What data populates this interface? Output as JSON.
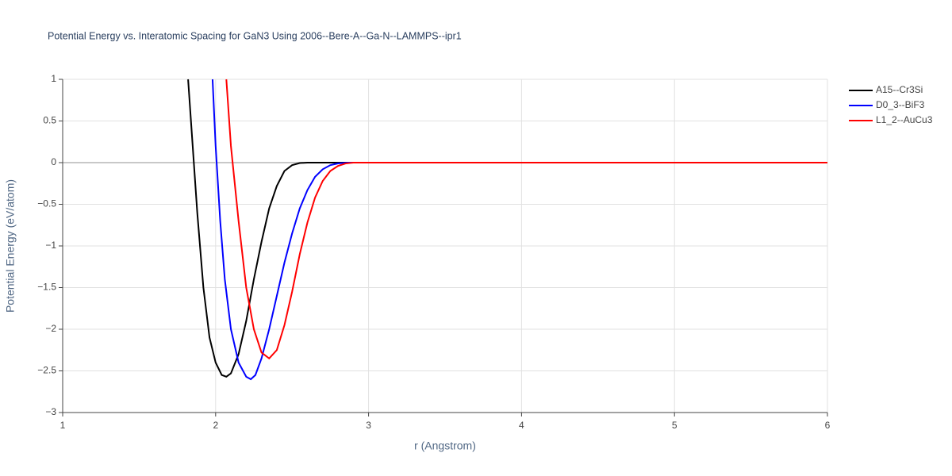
{
  "chart_data": {
    "type": "line",
    "title": "Potential Energy vs. Interatomic Spacing for GaN3 Using 2006--Bere-A--Ga-N--LAMMPS--ipr1",
    "x_label": "r (Angstrom)",
    "y_label": "Potential Energy (eV/atom)",
    "xlim": [
      1,
      6
    ],
    "ylim": [
      -3,
      1
    ],
    "xticks": [
      1,
      2,
      3,
      4,
      5,
      6
    ],
    "yticks": [
      {
        "value": -3,
        "label": "−3"
      },
      {
        "value": -2.5,
        "label": "−2.5"
      },
      {
        "value": -2,
        "label": "−2"
      },
      {
        "value": -1.5,
        "label": "−1.5"
      },
      {
        "value": -1,
        "label": "−1"
      },
      {
        "value": -0.5,
        "label": "−0.5"
      },
      0,
      0.5,
      1
    ],
    "grid": true,
    "legend": "right",
    "series": [
      {
        "name": "A15--Cr3Si",
        "color": "#000000",
        "x": [
          1.82,
          1.85,
          1.88,
          1.92,
          1.96,
          2.0,
          2.04,
          2.07,
          2.1,
          2.15,
          2.2,
          2.25,
          2.3,
          2.35,
          2.4,
          2.45,
          2.5,
          2.55,
          2.6,
          6
        ],
        "values": [
          1.0,
          0.2,
          -0.6,
          -1.5,
          -2.1,
          -2.4,
          -2.55,
          -2.57,
          -2.53,
          -2.3,
          -1.9,
          -1.4,
          -0.95,
          -0.55,
          -0.28,
          -0.1,
          -0.03,
          -0.005,
          0,
          0
        ]
      },
      {
        "name": "D0_3--BiF3",
        "color": "#0000ff",
        "x": [
          1.98,
          2.0,
          2.03,
          2.06,
          2.1,
          2.15,
          2.2,
          2.23,
          2.26,
          2.3,
          2.35,
          2.4,
          2.45,
          2.5,
          2.55,
          2.6,
          2.65,
          2.7,
          2.75,
          2.8,
          2.87,
          6
        ],
        "values": [
          1.0,
          0.2,
          -0.7,
          -1.4,
          -2.0,
          -2.4,
          -2.57,
          -2.6,
          -2.55,
          -2.35,
          -2.0,
          -1.6,
          -1.2,
          -0.85,
          -0.55,
          -0.33,
          -0.17,
          -0.08,
          -0.03,
          -0.01,
          0,
          0
        ]
      },
      {
        "name": "L1_2--AuCu3",
        "color": "#ff0000",
        "x": [
          2.07,
          2.1,
          2.15,
          2.2,
          2.25,
          2.3,
          2.35,
          2.4,
          2.45,
          2.5,
          2.55,
          2.6,
          2.65,
          2.7,
          2.75,
          2.8,
          2.85,
          2.9,
          6
        ],
        "values": [
          1.0,
          0.2,
          -0.7,
          -1.5,
          -2.0,
          -2.28,
          -2.35,
          -2.25,
          -1.95,
          -1.55,
          -1.1,
          -0.72,
          -0.42,
          -0.22,
          -0.1,
          -0.04,
          -0.01,
          0,
          0
        ]
      }
    ]
  }
}
